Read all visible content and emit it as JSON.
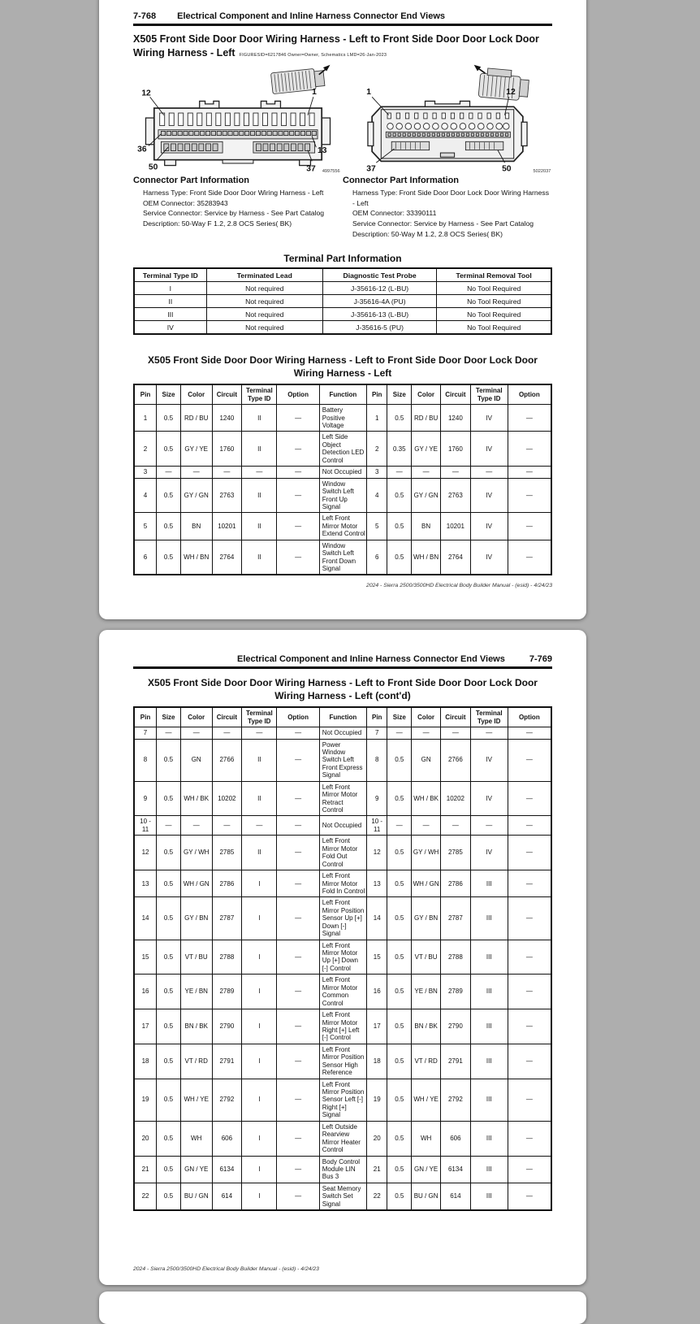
{
  "page1": {
    "page_number": "7-768",
    "header_title": "Electrical Component and Inline Harness Connector End Views",
    "title": "X505 Front Side Door Door Wiring Harness - Left to Front Side Door Door Lock Door Wiring Harness - Left",
    "title_meta": "FIGURESID=6217846   Owner=Owner, Schematics   LMD=26-Jan-2023",
    "diagram_left": {
      "id": "4997556",
      "label_top_left": "12",
      "label_top_right": "1",
      "label_mid_left": "36",
      "label_mid_right": "13",
      "label_bottom_left": "50",
      "label_bottom_right": "37"
    },
    "diagram_right": {
      "id": "5022037",
      "label_top_left": "1",
      "label_top_right": "12",
      "label_bottom_left": "37",
      "label_bottom_right": "50"
    },
    "connector_info_left": {
      "heading": "Connector Part Information",
      "lines": [
        "Harness Type:  Front Side Door Door Wiring Harness - Left",
        "OEM Connector:  35283943",
        "Service Connector:  Service by Harness - See Part Catalog",
        "Description:  50-Way F  1.2, 2.8 OCS Series(  BK)"
      ]
    },
    "connector_info_right": {
      "heading": "Connector Part Information",
      "lines": [
        "Harness Type:  Front Side Door Door Lock Door Wiring Harness - Left",
        "OEM Connector:  33390111",
        "Service Connector:  Service by Harness - See Part Catalog",
        "Description:  50-Way M  1.2, 2.8 OCS Series(  BK)"
      ]
    },
    "terminal_table": {
      "title": "Terminal Part Information",
      "headers": [
        "Terminal Type ID",
        "Terminated Lead",
        "Diagnostic Test Probe",
        "Terminal Removal Tool"
      ],
      "rows": [
        [
          "I",
          "Not required",
          "J-35616-12 (L-BU)",
          "No Tool Required"
        ],
        [
          "II",
          "Not required",
          "J-35616-4A (PU)",
          "No Tool Required"
        ],
        [
          "III",
          "Not required",
          "J-35616-13 (L-BU)",
          "No Tool Required"
        ],
        [
          "IV",
          "Not required",
          "J-35616-5 (PU)",
          "No Tool Required"
        ]
      ]
    },
    "main_table": {
      "title": "X505 Front Side Door Door Wiring Harness - Left to Front Side Door Door Lock Door Wiring Harness - Left",
      "headers": [
        "Pin",
        "Size",
        "Color",
        "Circuit",
        "Terminal Type ID",
        "Option",
        "Function",
        "Pin",
        "Size",
        "Color",
        "Circuit",
        "Terminal Type ID",
        "Option"
      ],
      "rows": [
        [
          "1",
          "0.5",
          "RD / BU",
          "1240",
          "II",
          "—",
          "Battery Positive Voltage",
          "1",
          "0.5",
          "RD / BU",
          "1240",
          "IV",
          "—"
        ],
        [
          "2",
          "0.5",
          "GY / YE",
          "1760",
          "II",
          "—",
          "Left Side Object Detection LED Control",
          "2",
          "0.35",
          "GY / YE",
          "1760",
          "IV",
          "—"
        ],
        [
          "3",
          "—",
          "—",
          "—",
          "—",
          "—",
          "Not Occupied",
          "3",
          "—",
          "—",
          "—",
          "—",
          "—"
        ],
        [
          "4",
          "0.5",
          "GY / GN",
          "2763",
          "II",
          "—",
          "Window Switch Left Front Up Signal",
          "4",
          "0.5",
          "GY / GN",
          "2763",
          "IV",
          "—"
        ],
        [
          "5",
          "0.5",
          "BN",
          "10201",
          "II",
          "—",
          "Left Front Mirror Motor Extend Control",
          "5",
          "0.5",
          "BN",
          "10201",
          "IV",
          "—"
        ],
        [
          "6",
          "0.5",
          "WH / BN",
          "2764",
          "II",
          "—",
          "Window Switch Left Front Down Signal",
          "6",
          "0.5",
          "WH / BN",
          "2764",
          "IV",
          "—"
        ]
      ]
    },
    "footer": "2024 - Sierra 2500/3500HD Electrical Body Builder Manual - (esid) - 4/24/23"
  },
  "page2": {
    "page_number": "7-769",
    "header_title": "Electrical Component and Inline Harness Connector End Views",
    "main_table": {
      "title": "X505 Front Side Door Door Wiring Harness - Left to Front Side Door Door Lock Door Wiring Harness - Left (cont'd)",
      "headers": [
        "Pin",
        "Size",
        "Color",
        "Circuit",
        "Terminal Type ID",
        "Option",
        "Function",
        "Pin",
        "Size",
        "Color",
        "Circuit",
        "Terminal Type ID",
        "Option"
      ],
      "rows": [
        [
          "7",
          "—",
          "—",
          "—",
          "—",
          "—",
          "Not Occupied",
          "7",
          "—",
          "—",
          "—",
          "—",
          "—"
        ],
        [
          "8",
          "0.5",
          "GN",
          "2766",
          "II",
          "—",
          "Power Window Switch Left Front Express Signal",
          "8",
          "0.5",
          "GN",
          "2766",
          "IV",
          "—"
        ],
        [
          "9",
          "0.5",
          "WH / BK",
          "10202",
          "II",
          "—",
          "Left Front Mirror Motor Retract Control",
          "9",
          "0.5",
          "WH / BK",
          "10202",
          "IV",
          "—"
        ],
        [
          "10 - 11",
          "—",
          "—",
          "—",
          "—",
          "—",
          "Not Occupied",
          "10 - 11",
          "—",
          "—",
          "—",
          "—",
          "—"
        ],
        [
          "12",
          "0.5",
          "GY / WH",
          "2785",
          "II",
          "—",
          "Left Front Mirror Motor Fold Out Control",
          "12",
          "0.5",
          "GY / WH",
          "2785",
          "IV",
          "—"
        ],
        [
          "13",
          "0.5",
          "WH / GN",
          "2786",
          "I",
          "—",
          "Left Front Mirror Motor Fold In Control",
          "13",
          "0.5",
          "WH / GN",
          "2786",
          "III",
          "—"
        ],
        [
          "14",
          "0.5",
          "GY / BN",
          "2787",
          "I",
          "—",
          "Left Front Mirror Position Sensor Up [+] Down [-] Signal",
          "14",
          "0.5",
          "GY / BN",
          "2787",
          "III",
          "—"
        ],
        [
          "15",
          "0.5",
          "VT / BU",
          "2788",
          "I",
          "—",
          "Left Front Mirror Motor Up [+] Down [-] Control",
          "15",
          "0.5",
          "VT / BU",
          "2788",
          "III",
          "—"
        ],
        [
          "16",
          "0.5",
          "YE / BN",
          "2789",
          "I",
          "—",
          "Left Front Mirror Motor Common Control",
          "16",
          "0.5",
          "YE / BN",
          "2789",
          "III",
          "—"
        ],
        [
          "17",
          "0.5",
          "BN / BK",
          "2790",
          "I",
          "—",
          "Left Front Mirror Motor Right [+] Left [-] Control",
          "17",
          "0.5",
          "BN / BK",
          "2790",
          "III",
          "—"
        ],
        [
          "18",
          "0.5",
          "VT / RD",
          "2791",
          "I",
          "—",
          "Left Front Mirror Position Sensor High Reference",
          "18",
          "0.5",
          "VT / RD",
          "2791",
          "III",
          "—"
        ],
        [
          "19",
          "0.5",
          "WH / YE",
          "2792",
          "I",
          "—",
          "Left Front Mirror Position Sensor Left [-] Right [+] Signal",
          "19",
          "0.5",
          "WH / YE",
          "2792",
          "III",
          "—"
        ],
        [
          "20",
          "0.5",
          "WH",
          "606",
          "I",
          "—",
          "Left Outside Rearview Mirror Heater Control",
          "20",
          "0.5",
          "WH",
          "606",
          "III",
          "—"
        ],
        [
          "21",
          "0.5",
          "GN / YE",
          "6134",
          "I",
          "—",
          "Body Control Module LIN Bus 3",
          "21",
          "0.5",
          "GN / YE",
          "6134",
          "III",
          "—"
        ],
        [
          "22",
          "0.5",
          "BU / GN",
          "614",
          "I",
          "—",
          "Seat Memory Switch Set Signal",
          "22",
          "0.5",
          "BU / GN",
          "614",
          "III",
          "—"
        ]
      ]
    },
    "footer": "2024 - Sierra 2500/3500HD Electrical Body Builder Manual - (esid) - 4/24/23"
  }
}
